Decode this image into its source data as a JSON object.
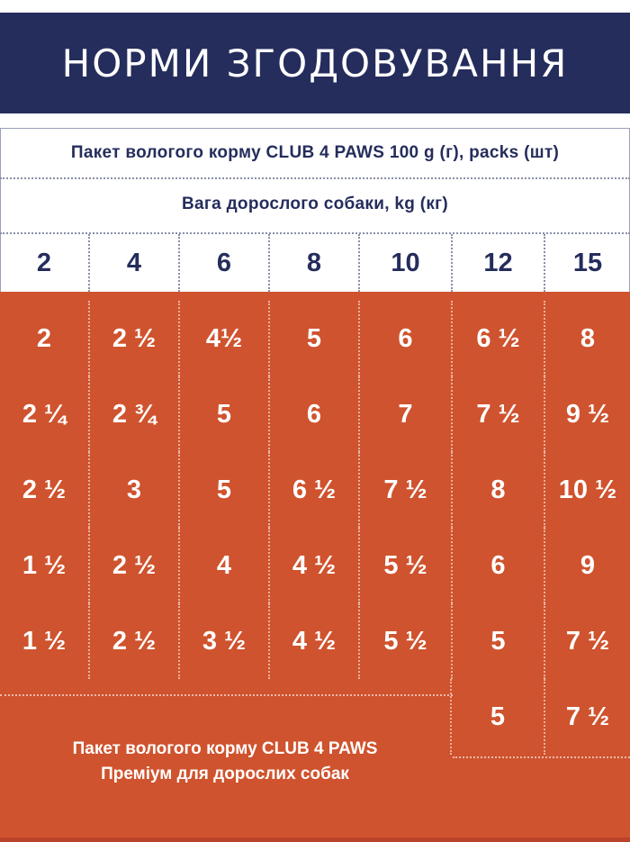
{
  "title": "НОРМИ ЗГОДОВУВАННЯ",
  "table": {
    "pack_header": "Пакет вологого корму CLUB 4 PAWS 100 g (г), packs (шт)",
    "weight_header": "Вага дорослого собаки, kg (кг)",
    "weights": [
      "2",
      "4",
      "6",
      "8",
      "10",
      "12",
      "15"
    ],
    "rows": [
      [
        "2",
        "2 ½",
        "4½",
        "5",
        "6",
        "6 ½",
        "8"
      ],
      [
        "2 ¼",
        "2 ¾",
        "5",
        "6",
        "7",
        "7 ½",
        "9 ½"
      ],
      [
        "2 ½",
        "3",
        "5",
        "6 ½",
        "7 ½",
        "8",
        "10 ½"
      ],
      [
        "1 ½",
        "2 ½",
        "4",
        "4 ½",
        "5 ½",
        "6",
        "9"
      ],
      [
        "1 ½",
        "2 ½",
        "3 ½",
        "4 ½",
        "5 ½",
        "5",
        "7 ½"
      ]
    ],
    "extra_row": [
      "5",
      "7 ½"
    ],
    "footer_line1": "Пакет вологого корму CLUB 4 PAWS",
    "footer_line2": "Преміум для дорослих собак"
  },
  "colors": {
    "navy": "#252d5c",
    "orange": "#cf532e",
    "white": "#ffffff"
  }
}
